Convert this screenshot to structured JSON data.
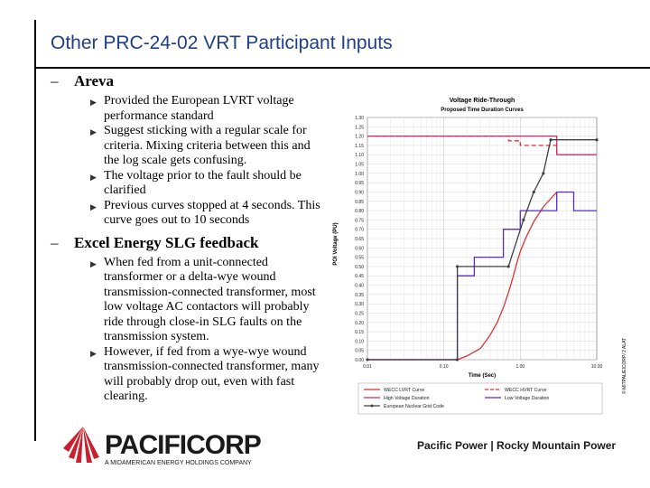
{
  "slide": {
    "title": "Other PRC-24-02 VRT Participant Inputs",
    "sections": [
      {
        "dash": "–",
        "heading": "Areva",
        "bullets": [
          "Provided the European LVRT voltage performance standard",
          "Suggest sticking with a regular scale for criteria.  Mixing criteria between this and the log scale gets confusing.",
          "The voltage prior to the fault should be clarified",
          "Previous curves stopped at 4 seconds.  This curve goes out to 10 seconds"
        ]
      },
      {
        "dash": "–",
        "heading": "Excel Energy SLG feedback",
        "bullets": [
          "When fed from a unit-connected transformer or a delta-wye wound transmission-connected transformer, most low voltage AC contactors will probably ride through close-in SLG faults on the transmission system.",
          "However, if fed from a wye-wye wound transmission-connected transformer, many will probably drop out, even with fast clearing."
        ]
      }
    ],
    "bullet_icon": "triangle-bullet-icon",
    "copyright": "© MITPALIEICORP/ 2 ALAT",
    "logo": {
      "name": "PACIFICORP",
      "subtitle": "A MIDAMERICAN ENERGY HOLDINGS COMPANY",
      "icon": "pacificorp-fan-logo-icon"
    },
    "tagline": "Pacific Power | Rocky Mountain Power"
  },
  "colors": {
    "title": "#1f3f86",
    "wecc_lvrt": "#e03030",
    "wecc_hvrt": "#e03030",
    "high_voltage": "#cc2c66",
    "low_voltage": "#5a28d0",
    "european": "#404040"
  },
  "chart_data": {
    "type": "line",
    "title": "Voltage Ride-Through",
    "subtitle": "Proposed Time Duration Curves",
    "xlabel": "Time (Sec)",
    "ylabel": "POI Voltage (PU)",
    "xscale": "log",
    "xlim": [
      0.01,
      10
    ],
    "ylim": [
      0,
      1.3
    ],
    "x_ticks": [
      "0.01",
      "0.10",
      "1.00",
      "10.00"
    ],
    "y_ticks": [
      "1.30",
      "1.25",
      "1.20",
      "1.15",
      "1.10",
      "1.05",
      "1.00",
      "0.95",
      "0.90",
      "0.85",
      "0.80",
      "0.75",
      "0.70",
      "0.65",
      "0.60",
      "0.55",
      "0.50",
      "0.45",
      "0.40",
      "0.35",
      "0.30",
      "0.25",
      "0.20",
      "0.15",
      "0.10",
      "0.05",
      "0.00"
    ],
    "grid": true,
    "legend_position": "bottom",
    "series": [
      {
        "name": "WECC LVRT Curve",
        "style": "solid",
        "color": "#e03030",
        "points": [
          [
            0.01,
            0
          ],
          [
            0.15,
            0
          ],
          [
            0.2,
            0.02
          ],
          [
            0.3,
            0.06
          ],
          [
            0.4,
            0.13
          ],
          [
            0.5,
            0.2
          ],
          [
            0.6,
            0.28
          ],
          [
            0.7,
            0.36
          ],
          [
            0.8,
            0.44
          ],
          [
            0.9,
            0.52
          ],
          [
            1,
            0.58
          ],
          [
            1.2,
            0.66
          ],
          [
            1.5,
            0.74
          ],
          [
            2,
            0.82
          ],
          [
            3,
            0.9
          ]
        ]
      },
      {
        "name": "WECC HVRT Curve",
        "style": "dashed",
        "color": "#e03030",
        "points": [
          [
            0.01,
            1.2
          ],
          [
            0.7,
            1.2
          ],
          [
            0.7,
            1.175
          ],
          [
            1,
            1.175
          ],
          [
            1,
            1.15
          ],
          [
            3,
            1.15
          ],
          [
            3,
            1.1
          ]
        ]
      },
      {
        "name": "High Voltage Duration",
        "style": "solid",
        "color": "#cc2c66",
        "points": [
          [
            0.01,
            1.2
          ],
          [
            3,
            1.2
          ],
          [
            3,
            1.1
          ],
          [
            10,
            1.1
          ]
        ]
      },
      {
        "name": "Low Voltage Duration",
        "style": "solid",
        "color": "#5a28d0",
        "points": [
          [
            0.01,
            0
          ],
          [
            0.15,
            0
          ],
          [
            0.15,
            0.45
          ],
          [
            0.25,
            0.45
          ],
          [
            0.25,
            0.55
          ],
          [
            0.6,
            0.55
          ],
          [
            0.6,
            0.7
          ],
          [
            1,
            0.7
          ],
          [
            1,
            0.8
          ],
          [
            3,
            0.8
          ],
          [
            3,
            0.9
          ],
          [
            5,
            0.9
          ],
          [
            5,
            0.8
          ],
          [
            10,
            0.8
          ]
        ]
      },
      {
        "name": "European Nuclear Grid Code",
        "style": "solid-markers",
        "color": "#404040",
        "points": [
          [
            0.01,
            0
          ],
          [
            0.15,
            0
          ],
          [
            0.15,
            0.5
          ],
          [
            0.7,
            0.5
          ],
          [
            1.1,
            0.75
          ],
          [
            1.5,
            0.9
          ],
          [
            2,
            1.0
          ],
          [
            2.5,
            1.18
          ],
          [
            10,
            1.18
          ]
        ]
      }
    ]
  }
}
